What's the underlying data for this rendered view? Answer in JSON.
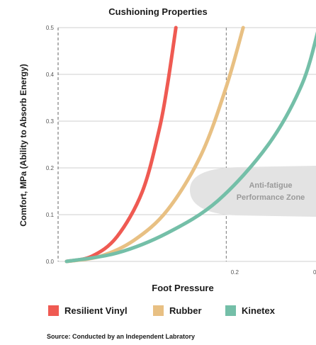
{
  "chart_data": {
    "type": "line",
    "title": "Cushioning Properties",
    "xlabel": "Foot Pressure",
    "ylabel": "Comfort, MPa (Ability to Absorb Energy)",
    "xlim": [
      0,
      0.3
    ],
    "ylim": [
      0,
      0.5
    ],
    "yticks": [
      "0.0",
      "0.1",
      "0.2",
      "0.3",
      "0.4",
      "0.5"
    ],
    "xticks": [
      "0.2",
      "0"
    ],
    "grid": "horizontal",
    "legend_position": "bottom",
    "series": [
      {
        "name": "Resilient Vinyl",
        "color": "#ef5a52",
        "x": [
          0.0,
          0.03,
          0.06,
          0.09,
          0.11,
          0.12,
          0.13
        ],
        "y": [
          0.0,
          0.011,
          0.053,
          0.149,
          0.281,
          0.378,
          0.5
        ]
      },
      {
        "name": "Rubber",
        "color": "#e8c083",
        "x": [
          0.0,
          0.04,
          0.08,
          0.12,
          0.16,
          0.19,
          0.21
        ],
        "y": [
          0.0,
          0.011,
          0.045,
          0.11,
          0.228,
          0.374,
          0.5
        ]
      },
      {
        "name": "Kinetex",
        "color": "#74bfa8",
        "x": [
          0.0,
          0.06,
          0.12,
          0.18,
          0.24,
          0.28,
          0.3
        ],
        "y": [
          0.0,
          0.018,
          0.061,
          0.13,
          0.25,
          0.379,
          0.5
        ]
      }
    ],
    "annotation": {
      "text_line1": "Anti-fatigue",
      "text_line2": "Performance Zone",
      "color": "#e3e3e3",
      "text_color": "#9a9a9a"
    },
    "reference_line_x": 0.2
  },
  "source": "Source: Conducted by an Independent Labratory"
}
